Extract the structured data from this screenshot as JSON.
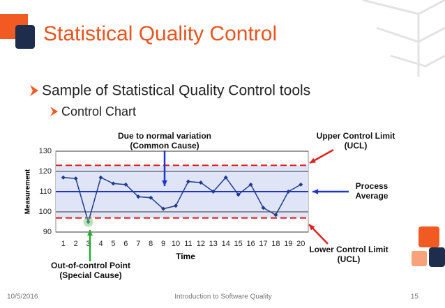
{
  "slide": {
    "title": "Statistical Quality Control",
    "bullets": [
      "Sample of Statistical Quality Control tools",
      "Control Chart"
    ],
    "footer": {
      "date": "10/5/2016",
      "center": "Introduction to Software Quality",
      "page": "15"
    }
  },
  "chart_data": {
    "type": "line",
    "x": [
      1,
      2,
      3,
      4,
      5,
      6,
      7,
      8,
      9,
      10,
      11,
      12,
      13,
      14,
      15,
      16,
      17,
      18,
      19,
      20
    ],
    "series": [
      {
        "color": "#1f3a8a",
        "values": [
          117,
          116.5,
          95,
          117,
          114,
          113.5,
          107.5,
          107,
          101.5,
          103,
          115,
          114.5,
          110,
          117,
          108.5,
          113.5,
          102,
          98.5,
          110,
          113.5
        ]
      }
    ],
    "xlim": [
      0.4,
      20.6
    ],
    "xticks": [
      1,
      2,
      3,
      4,
      5,
      6,
      7,
      8,
      9,
      10,
      11,
      12,
      13,
      14,
      15,
      16,
      17,
      18,
      19,
      20
    ],
    "ylim": [
      90,
      130
    ],
    "yticks": [
      90,
      100,
      110,
      120,
      130
    ],
    "x_label": "Time",
    "y_label": "Measurement",
    "ucl": 123,
    "lcl": 97,
    "center": 110,
    "annotations": {
      "normal": [
        "Due to normal variation",
        "(Common Cause)"
      ],
      "ucl": [
        "Upper Control Limit",
        "(UCL)"
      ],
      "average": [
        "Process",
        "Average"
      ],
      "lcl": [
        "Lower Control Limit",
        "(UCL)"
      ],
      "outlier": [
        "Out-of-control Point",
        "(Special Cause)"
      ]
    }
  }
}
